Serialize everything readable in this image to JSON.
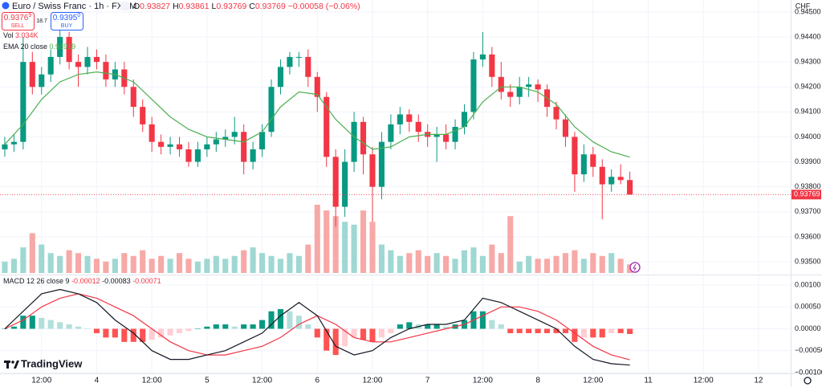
{
  "header": {
    "symbol": "Euro / Swiss Franc · 1h · FXCM",
    "ohlc_labels": [
      "O",
      "H",
      "L",
      "C"
    ],
    "change": "−0.00058 (−0.06%)",
    "sell_price": "0.9376",
    "sell_sup": "9",
    "sell": "SELL",
    "spread": "18.7",
    "buy_price": "0.9395",
    "buy_sup": "0",
    "buy": "BUY",
    "currency": "CHF",
    "vol_label": "Vol",
    "vol_value": "3.034K",
    "logo": "TradingView"
  },
  "chart_data": [
    {
      "type": "candlestick",
      "up_color": "#089981",
      "down_color": "#f23645",
      "xlim": [
        -0.52,
        85.5
      ],
      "ylim": [
        0.93455,
        0.94548
      ],
      "xticks": [
        {
          "value": 4,
          "label": "12:00"
        },
        {
          "value": 10,
          "label": "4"
        },
        {
          "value": 16,
          "label": "12:00"
        },
        {
          "value": 22,
          "label": "5"
        },
        {
          "value": 28,
          "label": "12:00"
        },
        {
          "value": 34,
          "label": "6"
        },
        {
          "value": 40,
          "label": "12:00"
        },
        {
          "value": 46,
          "label": "7"
        },
        {
          "value": 52,
          "label": "12:00"
        },
        {
          "value": 58,
          "label": "8"
        },
        {
          "value": 64,
          "label": "12:00"
        },
        {
          "value": 70,
          "label": "11"
        },
        {
          "value": 76,
          "label": "12:00"
        },
        {
          "value": 82,
          "label": "12"
        }
      ],
      "yticks": [
        {
          "value": 0.935,
          "label": "0.93500"
        },
        {
          "value": 0.936,
          "label": "0.93600"
        },
        {
          "value": 0.937,
          "label": "0.93700"
        },
        {
          "value": 0.938,
          "label": "0.93800"
        },
        {
          "value": 0.939,
          "label": "0.93900"
        },
        {
          "value": 0.94,
          "label": "0.94000"
        },
        {
          "value": 0.941,
          "label": "0.94100"
        },
        {
          "value": 0.942,
          "label": "0.94200"
        },
        {
          "value": 0.943,
          "label": "0.94300"
        },
        {
          "value": 0.944,
          "label": "0.94400"
        },
        {
          "value": 0.945,
          "label": "0.94500"
        }
      ],
      "grid": true,
      "open": [
        0.9395,
        0.9397,
        0.9398,
        0.943,
        0.942,
        0.9425,
        0.9432,
        0.944,
        0.943,
        0.9428,
        0.9432,
        0.943,
        0.9423,
        0.9427,
        0.942,
        0.9412,
        0.9405,
        0.9398,
        0.9396,
        0.9397,
        0.9395,
        0.939,
        0.9395,
        0.9397,
        0.9399,
        0.94,
        0.9402,
        0.939,
        0.9395,
        0.9402,
        0.942,
        0.9428,
        0.9432,
        0.9432,
        0.9424,
        0.9416,
        0.9392,
        0.9372,
        0.939,
        0.9406,
        0.9393,
        0.938,
        0.9398,
        0.9405,
        0.9409,
        0.9406,
        0.9402,
        0.94,
        0.9401,
        0.9398,
        0.9404,
        0.941,
        0.9431,
        0.9433,
        0.9424,
        0.9418,
        0.9416,
        0.942,
        0.9421,
        0.9419,
        0.9412,
        0.9407,
        0.94,
        0.9385,
        0.9393,
        0.9388,
        0.9381,
        0.9384,
        0.93827
      ],
      "high": [
        0.94,
        0.9401,
        0.944,
        0.9434,
        0.9428,
        0.9435,
        0.9443,
        0.9442,
        0.9433,
        0.9436,
        0.9435,
        0.9433,
        0.943,
        0.943,
        0.9423,
        0.9415,
        0.9408,
        0.9401,
        0.94,
        0.94,
        0.9398,
        0.9398,
        0.94,
        0.9402,
        0.9403,
        0.9408,
        0.9405,
        0.9398,
        0.9405,
        0.9423,
        0.9431,
        0.9434,
        0.9434,
        0.9435,
        0.9426,
        0.9418,
        0.9395,
        0.9395,
        0.941,
        0.9408,
        0.9396,
        0.9402,
        0.9409,
        0.9412,
        0.9411,
        0.9409,
        0.9405,
        0.9404,
        0.9405,
        0.9407,
        0.9413,
        0.9434,
        0.9442,
        0.9436,
        0.943,
        0.9421,
        0.9424,
        0.9424,
        0.9423,
        0.9421,
        0.9414,
        0.9409,
        0.9402,
        0.9397,
        0.9396,
        0.9391,
        0.9387,
        0.9389,
        0.93861
      ],
      "low": [
        0.9392,
        0.9394,
        0.9395,
        0.9417,
        0.9417,
        0.9422,
        0.9429,
        0.9427,
        0.942,
        0.9425,
        0.9427,
        0.942,
        0.942,
        0.9417,
        0.9408,
        0.9402,
        0.9394,
        0.9393,
        0.9393,
        0.9392,
        0.9388,
        0.9388,
        0.9392,
        0.9394,
        0.9396,
        0.9397,
        0.9385,
        0.9387,
        0.9392,
        0.94,
        0.9417,
        0.9425,
        0.9428,
        0.942,
        0.941,
        0.9388,
        0.9364,
        0.9368,
        0.9386,
        0.9385,
        0.9366,
        0.9375,
        0.9395,
        0.9401,
        0.9402,
        0.9398,
        0.9396,
        0.939,
        0.9395,
        0.9395,
        0.9401,
        0.9407,
        0.9428,
        0.942,
        0.9415,
        0.9412,
        0.9413,
        0.9416,
        0.9414,
        0.9408,
        0.9403,
        0.9396,
        0.9378,
        0.9382,
        0.9384,
        0.9367,
        0.9378,
        0.9381,
        0.93769
      ],
      "close": [
        0.9397,
        0.9398,
        0.943,
        0.942,
        0.9425,
        0.9432,
        0.944,
        0.943,
        0.9428,
        0.9432,
        0.943,
        0.9423,
        0.9427,
        0.942,
        0.9412,
        0.9405,
        0.9398,
        0.9396,
        0.9397,
        0.9395,
        0.939,
        0.9395,
        0.9397,
        0.9399,
        0.94,
        0.9402,
        0.939,
        0.9395,
        0.9402,
        0.942,
        0.9428,
        0.9432,
        0.9432,
        0.9424,
        0.9416,
        0.9392,
        0.9372,
        0.939,
        0.9406,
        0.9393,
        0.938,
        0.9398,
        0.9405,
        0.9409,
        0.9406,
        0.9402,
        0.94,
        0.9401,
        0.9398,
        0.9404,
        0.941,
        0.9431,
        0.9433,
        0.9424,
        0.9418,
        0.9416,
        0.942,
        0.9421,
        0.9419,
        0.9412,
        0.9407,
        0.94,
        0.9385,
        0.9393,
        0.9388,
        0.9381,
        0.9384,
        0.93827,
        0.93769
      ],
      "volume": {
        "up_color": "#9fd8d2",
        "down_color": "#f7a9a7",
        "ylim": [
          0,
          96
        ],
        "values": [
          4,
          5,
          9,
          14,
          10,
          7,
          6,
          8,
          7,
          6,
          5,
          4,
          5,
          7,
          6,
          8,
          5,
          6,
          5,
          7,
          5,
          4,
          5,
          6,
          5,
          6,
          8,
          9,
          7,
          6,
          5,
          7,
          6,
          10,
          24,
          22,
          20,
          18,
          17,
          22,
          18,
          10,
          8,
          6,
          7,
          8,
          6,
          7,
          6,
          5,
          8,
          9,
          6,
          10,
          7,
          20,
          4,
          6,
          5,
          5,
          6,
          7,
          8,
          5,
          7,
          6,
          7,
          5,
          3.034
        ]
      },
      "ema": {
        "name": "EMA 20 close",
        "color": "#4caf50",
        "x": [
          0,
          2,
          4,
          6,
          8,
          10,
          12,
          14,
          16,
          18,
          20,
          22,
          24,
          26,
          28,
          30,
          32,
          34,
          36,
          38,
          40,
          42,
          44,
          46,
          48,
          50,
          52,
          54,
          56,
          58,
          60,
          62,
          64,
          66,
          68
        ],
        "values": [
          0.9397,
          0.9405,
          0.9415,
          0.9422,
          0.9425,
          0.9426,
          0.9425,
          0.9422,
          0.9415,
          0.9408,
          0.9403,
          0.94,
          0.9399,
          0.9398,
          0.9402,
          0.9412,
          0.9418,
          0.9417,
          0.9407,
          0.94,
          0.9395,
          0.9396,
          0.94,
          0.9401,
          0.9401,
          0.9404,
          0.9414,
          0.942,
          0.942,
          0.9418,
          0.9413,
          0.9404,
          0.9398,
          0.9394,
          0.93919
        ]
      }
    },
    {
      "type": "macd",
      "name": "MACD 12 26 close 9",
      "ylim": [
        -0.00102,
        0.00124
      ],
      "yticks": [
        {
          "value": 0.001,
          "label": "0.00100"
        },
        {
          "value": 0.0005,
          "label": "0.00050"
        },
        {
          "value": 0,
          "label": "0.00000"
        },
        {
          "value": -0.0005,
          "label": "−0.00050"
        },
        {
          "value": -0.001,
          "label": "−0.00100"
        }
      ],
      "histogram": {
        "colors": [
          "#089981",
          "#b2dfdb",
          "#ff5252",
          "#ffcdd2"
        ],
        "values": [
          0,
          5e-05,
          0.0003,
          0.0003,
          0.00025,
          0.0002,
          0.00015,
          0.0001,
          5e-05,
          0,
          -0.0001,
          -0.0002,
          -0.0002,
          -0.0003,
          -0.0003,
          -0.0003,
          -0.00025,
          -0.0002,
          -0.00015,
          -0.0001,
          -5e-05,
          0,
          5e-05,
          0.0001,
          0.0001,
          5e-05,
          0.0001,
          0.0001,
          0.0002,
          0.0004,
          0.00045,
          0.0004,
          0.0003,
          0.0001,
          -0.0002,
          -0.0005,
          -0.0006,
          -0.0004,
          -0.0002,
          -0.00025,
          -0.0003,
          -0.0002,
          -0.0001,
          0.0001,
          0.00015,
          0.0001,
          0.0001,
          0.0001,
          5e-05,
          0.0001,
          0.0002,
          0.0004,
          0.0004,
          0.0002,
          0.0001,
          -0.0001,
          -0.0001,
          -0.0001,
          -0.0001,
          -0.0001,
          -0.0001,
          -0.0001,
          -0.0003,
          -0.0002,
          -0.0002,
          -0.0002,
          -0.0001,
          -0.0001,
          -0.00012
        ]
      },
      "macd": {
        "color": "#131722",
        "x": [
          0,
          2,
          4,
          6,
          8,
          10,
          12,
          14,
          16,
          18,
          20,
          22,
          24,
          26,
          28,
          30,
          32,
          34,
          36,
          38,
          40,
          42,
          44,
          46,
          48,
          50,
          52,
          54,
          56,
          58,
          60,
          62,
          64,
          66,
          68
        ],
        "values": [
          0,
          0.0004,
          0.0008,
          0.0009,
          0.0008,
          0.0006,
          0.0002,
          -0.0001,
          -0.0005,
          -0.0007,
          -0.0007,
          -0.0006,
          -0.0005,
          -0.0003,
          -0.0001,
          0.0003,
          0.0006,
          0.0003,
          -0.0004,
          -0.0006,
          -0.0005,
          -0.0002,
          0,
          0.0001,
          0.0001,
          0.0002,
          0.0007,
          0.0006,
          0.0004,
          0.0002,
          0,
          -0.0004,
          -0.0007,
          -0.0008,
          -0.00083
        ]
      },
      "signal": {
        "color": "#f23645",
        "x": [
          0,
          2,
          4,
          6,
          8,
          10,
          12,
          14,
          16,
          18,
          20,
          22,
          24,
          26,
          28,
          30,
          32,
          34,
          36,
          38,
          40,
          42,
          44,
          46,
          48,
          50,
          52,
          54,
          56,
          58,
          60,
          62,
          64,
          66,
          68
        ],
        "values": [
          0,
          0.0002,
          0.0005,
          0.0007,
          0.0008,
          0.0007,
          0.0005,
          0.0003,
          0,
          -0.0003,
          -0.0005,
          -0.0006,
          -0.0006,
          -0.0005,
          -0.0004,
          -0.0002,
          0.0001,
          0.0003,
          0.0001,
          -0.0002,
          -0.0003,
          -0.0003,
          -0.0002,
          -0.0001,
          0,
          0.0001,
          0.0003,
          0.0005,
          0.0005,
          0.0004,
          0.0002,
          -0.0001,
          -0.0004,
          -0.0006,
          -0.00071
        ]
      }
    }
  ]
}
